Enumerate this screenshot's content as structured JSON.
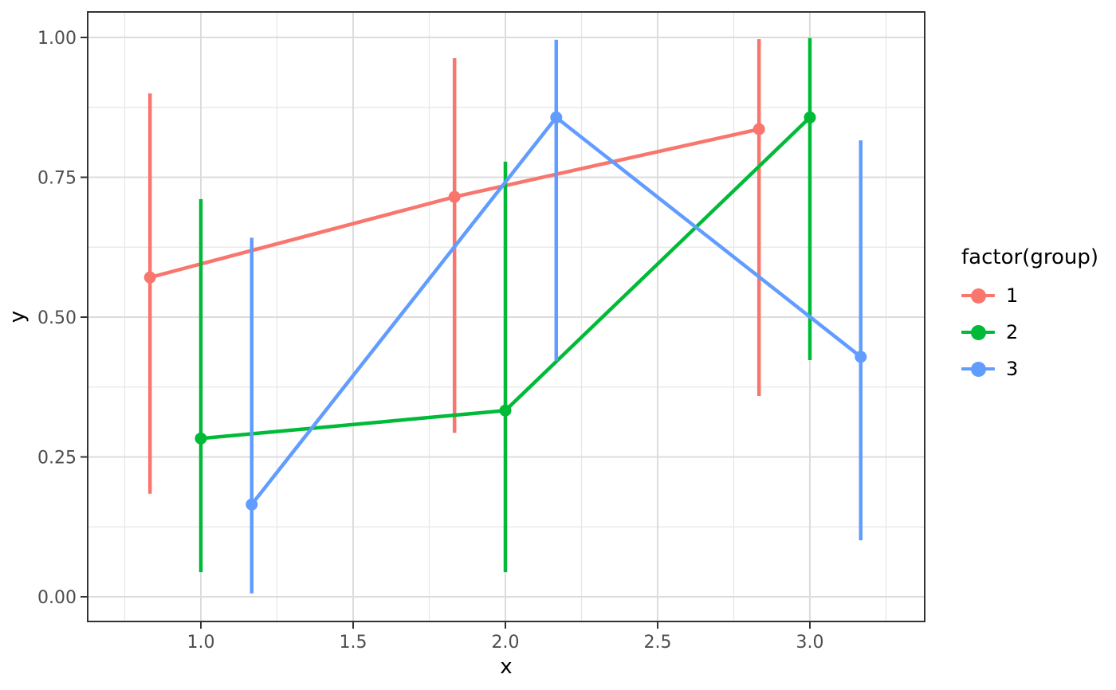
{
  "chart_data": {
    "type": "pointrange-line",
    "title": "",
    "xlabel": "x",
    "ylabel": "y",
    "xlim": [
      0.6283,
      3.377
    ],
    "ylim": [
      -0.0442,
      1.0456
    ],
    "x_ticks": [
      1.0,
      1.5,
      2.0,
      2.5,
      3.0
    ],
    "x_tick_labels": [
      "1.0",
      "1.5",
      "2.0",
      "2.5",
      "3.0"
    ],
    "y_ticks": [
      0.0,
      0.25,
      0.5,
      0.75,
      1.0
    ],
    "y_tick_labels": [
      "0.00",
      "0.25",
      "0.50",
      "0.75",
      "1.00"
    ],
    "x_minor_gridlines": [
      0.75,
      1.25,
      1.75,
      2.25,
      2.75,
      3.25
    ],
    "y_minor_gridlines": [
      0.125,
      0.375,
      0.625,
      0.875
    ],
    "grid": true,
    "legend_position": "right",
    "legend": {
      "title": "factor(group)",
      "entries": [
        {
          "label": "1",
          "color": "#F8766D"
        },
        {
          "label": "2",
          "color": "#00BA38"
        },
        {
          "label": "3",
          "color": "#619CFF"
        }
      ]
    },
    "series": [
      {
        "name": "1",
        "color": "#F8766D",
        "points": [
          {
            "x": 0.833,
            "y": 0.571,
            "ymin": 0.184,
            "ymax": 0.9
          },
          {
            "x": 1.833,
            "y": 0.715,
            "ymin": 0.293,
            "ymax": 0.963
          },
          {
            "x": 2.833,
            "y": 0.836,
            "ymin": 0.359,
            "ymax": 0.997
          }
        ]
      },
      {
        "name": "2",
        "color": "#00BA38",
        "points": [
          {
            "x": 1.0,
            "y": 0.283,
            "ymin": 0.044,
            "ymax": 0.711
          },
          {
            "x": 2.0,
            "y": 0.333,
            "ymin": 0.044,
            "ymax": 0.778
          },
          {
            "x": 3.0,
            "y": 0.857,
            "ymin": 0.423,
            "ymax": 0.999
          }
        ]
      },
      {
        "name": "3",
        "color": "#619CFF",
        "points": [
          {
            "x": 1.167,
            "y": 0.165,
            "ymin": 0.006,
            "ymax": 0.642
          },
          {
            "x": 2.167,
            "y": 0.857,
            "ymin": 0.422,
            "ymax": 0.996
          },
          {
            "x": 3.167,
            "y": 0.429,
            "ymin": 0.101,
            "ymax": 0.816
          }
        ]
      }
    ],
    "colors": {
      "background": "#FFFFFF",
      "panel_background": "#FFFFFF",
      "grid_major": "#DCDCDC",
      "grid_minor": "#E6E6E6",
      "panel_border": "#333333",
      "tick_mark": "#333333",
      "tick_text": "#4D4D4D",
      "axis_title": "#000000"
    }
  }
}
